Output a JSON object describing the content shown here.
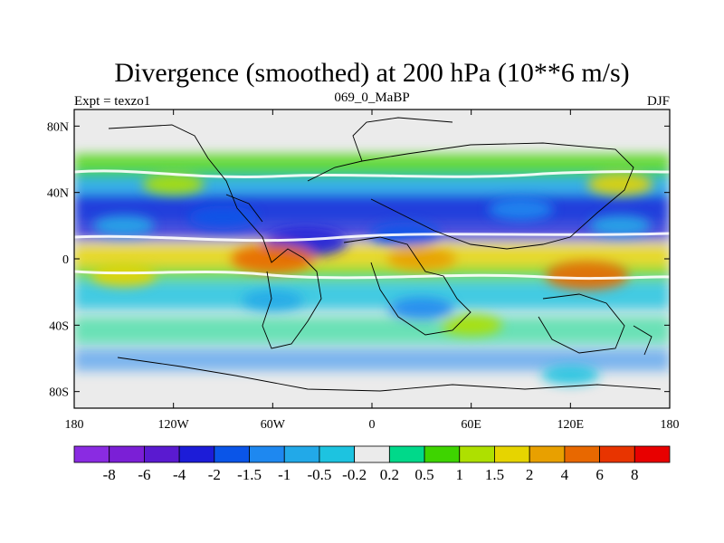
{
  "chart_data": {
    "type": "heatmap",
    "title": "Divergence (smoothed) at 200 hPa (10**6 m/s)",
    "left_label": "Expt = texzo1",
    "center_label": "069_0_MaBP",
    "right_label": "DJF",
    "x_ticks": [
      "180",
      "120W",
      "60W",
      "0",
      "60E",
      "120E",
      "180"
    ],
    "x_values": [
      -180,
      -120,
      -60,
      0,
      60,
      120,
      180
    ],
    "y_ticks": [
      "80N",
      "40N",
      "0",
      "40S",
      "80S"
    ],
    "y_values": [
      80,
      40,
      0,
      -40,
      -80
    ],
    "xlim": [
      -180,
      180
    ],
    "ylim": [
      -90,
      90
    ],
    "colorbar": {
      "labels": [
        "-8",
        "-6",
        "-4",
        "-2",
        "-1.5",
        "-1",
        "-0.5",
        "-0.2",
        "0.2",
        "0.5",
        "1",
        "1.5",
        "2",
        "4",
        "6",
        "8"
      ],
      "levels": [
        -8,
        -6,
        -4,
        -2,
        -1.5,
        -1,
        -0.5,
        -0.2,
        0.2,
        0.5,
        1,
        1.5,
        2,
        4,
        6,
        8
      ],
      "colors": [
        "#8a2be2",
        "#7b1fd6",
        "#5a1ad0",
        "#1c1cd8",
        "#0a55e8",
        "#1e88f0",
        "#22a9e8",
        "#1dc3e0",
        "#ebebeb",
        "#00d98a",
        "#3ed400",
        "#aee000",
        "#e6d400",
        "#e8a000",
        "#e86800",
        "#e83400",
        "#e80000"
      ]
    },
    "features": {
      "negative_zones": [
        {
          "lon": -150,
          "lat": 20,
          "value": -1.0
        },
        {
          "lon": -90,
          "lat": 25,
          "value": -2.0
        },
        {
          "lon": -40,
          "lat": 10,
          "value": -4.0
        },
        {
          "lon": 20,
          "lat": 15,
          "value": -2.0
        },
        {
          "lon": 90,
          "lat": 30,
          "value": -1.5
        },
        {
          "lon": 150,
          "lat": 20,
          "value": -1.0
        },
        {
          "lon": -60,
          "lat": -25,
          "value": -1.0
        },
        {
          "lon": 30,
          "lat": -30,
          "value": -1.5
        },
        {
          "lon": 120,
          "lat": -70,
          "value": -0.5
        }
      ],
      "positive_zones": [
        {
          "lon": -120,
          "lat": 45,
          "value": 1.0
        },
        {
          "lon": 150,
          "lat": 45,
          "value": 1.5
        },
        {
          "lon": -60,
          "lat": 0,
          "value": 4.0
        },
        {
          "lon": 30,
          "lat": 0,
          "value": 2.0
        },
        {
          "lon": 130,
          "lat": -10,
          "value": 4.0
        },
        {
          "lon": -150,
          "lat": -10,
          "value": 1.5
        },
        {
          "lon": 60,
          "lat": -40,
          "value": 1.0
        }
      ]
    }
  }
}
